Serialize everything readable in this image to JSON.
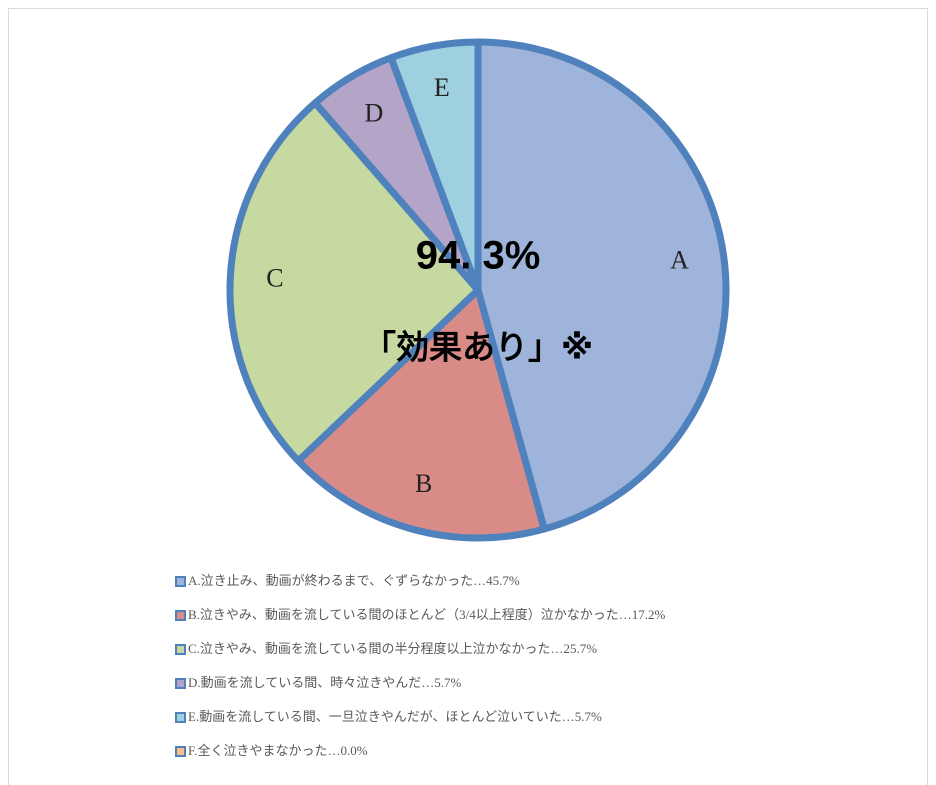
{
  "chart_data": {
    "type": "pie",
    "categories": [
      "A.泣き止み、動画が終わるまで、ぐずらなかった…45.7%",
      "B.泣きやみ、動画を流している間のほとんど（3/4以上程度）泣かなかった…17.2%",
      "C.泣きやみ、動画を流している間の半分程度以上泣かなかった…25.7%",
      "D.動画を流している間、時々泣きやんだ…5.7%",
      "E.動画を流している間、一旦泣きやんだが、ほとんど泣いていた…5.7%",
      "F.全く泣きやまなかった…0.0%"
    ],
    "values": [
      45.7,
      17.2,
      25.7,
      5.7,
      5.7,
      0.0
    ],
    "slice_labels": [
      "A",
      "B",
      "C",
      "D",
      "E",
      null
    ],
    "colors": [
      "#9fb4da",
      "#d98b88",
      "#c6d9a0",
      "#b4a4c8",
      "#9fd0df",
      "#f9be8c"
    ],
    "edge_color": "#4f81bd",
    "annotations": [
      "94. 3%",
      "「効果あり」※"
    ],
    "legend": "bottom"
  }
}
